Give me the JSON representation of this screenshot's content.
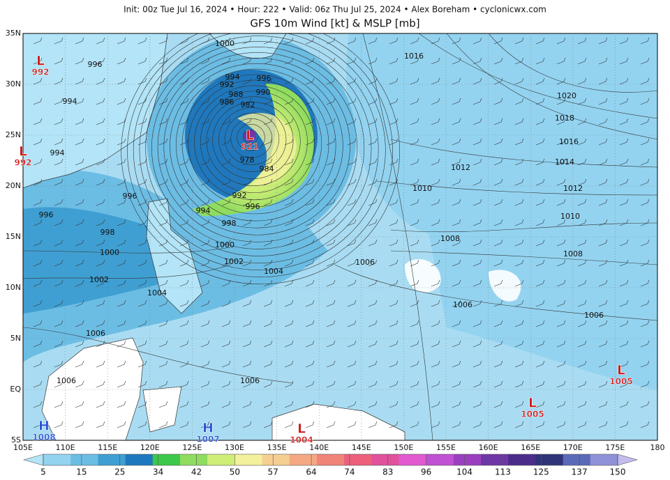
{
  "header": {
    "subtitle": "Init: 00z Tue Jul 16, 2024 • Hour: 222 • Valid: 06z Thu Jul 25, 2024 • Alex Boreham • cyclonicwx.com",
    "title": "GFS 10m Wind [kt] & MSLP [mb]"
  },
  "map": {
    "lat_labels": [
      "35N",
      "30N",
      "25N",
      "20N",
      "15N",
      "10N",
      "5N",
      "EQ",
      "5S"
    ],
    "lon_labels": [
      "105E",
      "110E",
      "115E",
      "120E",
      "125E",
      "130E",
      "135E",
      "140E",
      "145E",
      "150E",
      "155E",
      "160E",
      "165E",
      "170E",
      "175E",
      "180"
    ],
    "isobar_labels": [
      1000,
      996,
      994,
      994,
      996,
      996,
      998,
      1000,
      1002,
      1004,
      1006,
      1006,
      1006,
      1002,
      1000,
      1004,
      998,
      996,
      992,
      994,
      984,
      978,
      982,
      988,
      986,
      992,
      994,
      996,
      990,
      1016,
      1020,
      1018,
      1016,
      1014,
      1012,
      1012,
      1010,
      1010,
      1008,
      1008,
      1006,
      1006,
      1006
    ],
    "pressure_centers": [
      {
        "letter": "L",
        "value": 992
      },
      {
        "letter": "L",
        "value": 992
      },
      {
        "letter": "L",
        "value": 921
      },
      {
        "letter": "H",
        "value": 1008
      },
      {
        "letter": "H",
        "value": 1007
      },
      {
        "letter": "L",
        "value": 1004
      },
      {
        "letter": "L",
        "value": 1005
      },
      {
        "letter": "L",
        "value": 1005
      }
    ]
  },
  "colorbar": {
    "ticks": [
      5,
      15,
      25,
      34,
      42,
      50,
      57,
      64,
      74,
      83,
      96,
      104,
      113,
      125,
      137,
      150
    ],
    "colors": [
      "#b3e4f7",
      "#93d3f0",
      "#6cbde4",
      "#3f9fd2",
      "#1f78bd",
      "#3cc84a",
      "#8fdc5e",
      "#cfee78",
      "#f3f19c",
      "#f5cf92",
      "#f4a983",
      "#f18479",
      "#ec607c",
      "#e0529c",
      "#e15ad0",
      "#c050d4",
      "#9a3fbf",
      "#6f36a5",
      "#4b2c8a",
      "#2e3477",
      "#5a6ab8",
      "#8f92d8",
      "#c3bdee"
    ]
  }
}
